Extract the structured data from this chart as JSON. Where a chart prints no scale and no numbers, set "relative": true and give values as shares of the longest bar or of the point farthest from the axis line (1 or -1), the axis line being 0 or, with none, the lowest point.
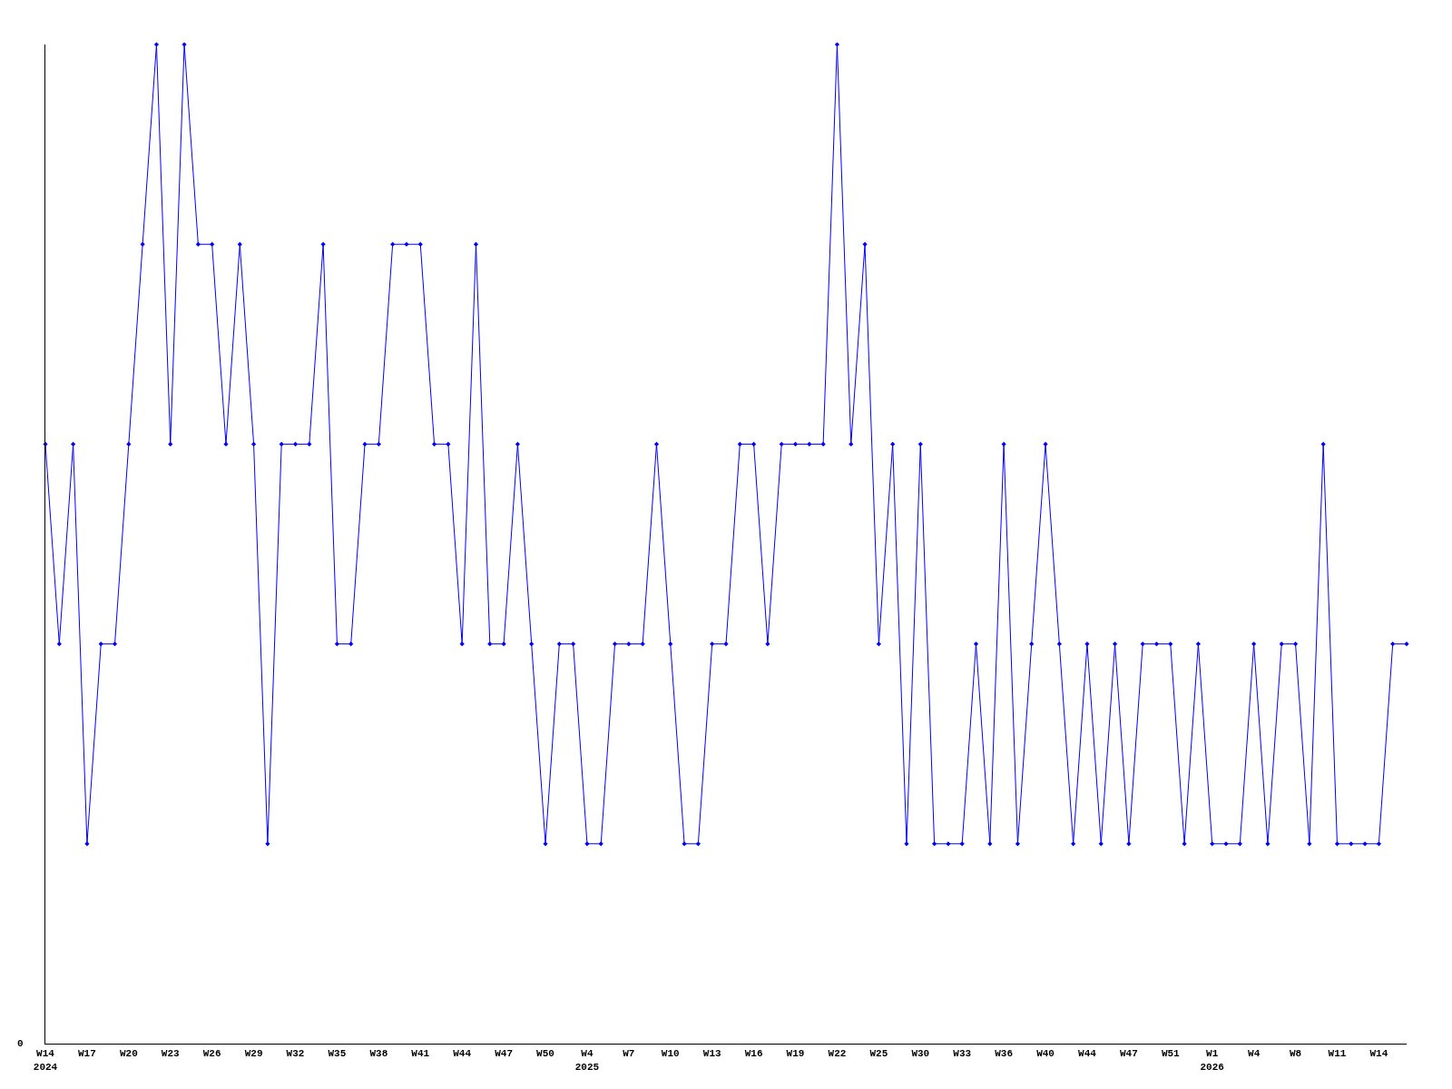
{
  "chart_data": {
    "type": "line",
    "relative": true,
    "marker": "diamond",
    "line_style": "solid",
    "annotations": [
      "0"
    ],
    "categories": [
      "W14\n2024",
      null,
      null,
      "W17",
      null,
      null,
      "W20",
      null,
      null,
      "W23",
      null,
      null,
      "W26",
      null,
      null,
      "W29",
      null,
      null,
      "W32",
      null,
      null,
      "W35",
      null,
      null,
      "W38",
      null,
      null,
      "W41",
      null,
      null,
      "W44",
      null,
      null,
      "W47",
      null,
      null,
      "W50",
      null,
      null,
      "W4\n2025",
      null,
      null,
      "W7",
      null,
      null,
      "W10",
      null,
      null,
      "W13",
      null,
      null,
      "W16",
      null,
      null,
      "W19",
      null,
      null,
      "W22",
      null,
      null,
      "W25",
      null,
      null,
      "W30",
      null,
      null,
      "W33",
      null,
      null,
      "W36",
      null,
      null,
      "W40",
      null,
      null,
      "W44",
      null,
      null,
      "W47",
      null,
      null,
      "W51",
      null,
      null,
      "W1\n2026",
      null,
      null,
      "W4",
      null,
      null,
      "W8",
      null,
      null,
      "W11",
      null,
      null,
      "W14",
      null,
      null
    ],
    "series": [
      {
        "color": "#0000ff",
        "values": [
          0.6,
          0.4,
          0.6,
          0.2,
          0.4,
          0.4,
          0.6,
          0.8,
          1,
          0.6,
          1,
          0.8,
          0.8,
          0.6,
          0.8,
          0.6,
          0.2,
          0.6,
          0.6,
          0.6,
          0.8,
          0.4,
          0.4,
          0.6,
          0.6,
          0.8,
          0.8,
          0.8,
          0.6,
          0.6,
          0.4,
          0.8,
          0.4,
          0.4,
          0.6,
          0.4,
          0.2,
          0.4,
          0.4,
          0.2,
          0.2,
          0.4,
          0.4,
          0.4,
          0.6,
          0.4,
          0.2,
          0.2,
          0.4,
          0.4,
          0.6,
          0.6,
          0.4,
          0.6,
          0.6,
          0.6,
          0.6,
          1,
          0.6,
          0.8,
          0.4,
          0.6,
          0.2,
          0.6,
          0.2,
          0.2,
          0.2,
          0.4,
          0.2,
          0.6,
          0.2,
          0.4,
          0.6,
          0.4,
          0.2,
          0.4,
          0.2,
          0.4,
          0.2,
          0.4,
          0.4,
          0.4,
          0.2,
          0.4,
          0.2,
          0.2,
          0.2,
          0.4,
          0.2,
          0.4,
          0.4,
          0.2,
          0.6,
          0.2,
          0.2,
          0.2,
          0.2,
          0.4,
          0.4
        ]
      }
    ]
  }
}
